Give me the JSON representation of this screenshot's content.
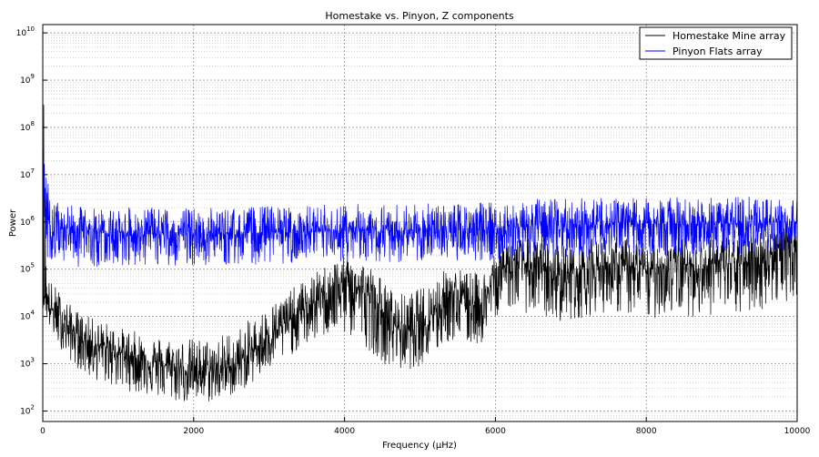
{
  "chart_data": {
    "type": "line",
    "title": "Homestake vs. Pinyon, Z components",
    "xlabel": "Frequency (μHz)",
    "ylabel": "Power",
    "xlim": [
      0,
      10000
    ],
    "ylim": [
      60,
      15000000000
    ],
    "yscale": "log",
    "grid": true,
    "legend_position": "top-right",
    "x_ticks": [
      "0",
      "2000",
      "4000",
      "6000",
      "8000",
      "10000"
    ],
    "y_ticks": [
      {
        "base": "10",
        "exp": "2"
      },
      {
        "base": "10",
        "exp": "3"
      },
      {
        "base": "10",
        "exp": "4"
      },
      {
        "base": "10",
        "exp": "5"
      },
      {
        "base": "10",
        "exp": "6"
      },
      {
        "base": "10",
        "exp": "7"
      },
      {
        "base": "10",
        "exp": "8"
      },
      {
        "base": "10",
        "exp": "9"
      },
      {
        "base": "10",
        "exp": "10"
      }
    ],
    "series": [
      {
        "name": "Homestake Mine array",
        "color": "#000000",
        "x": [
          0,
          20,
          60,
          100,
          200,
          400,
          600,
          800,
          1000,
          1200,
          1500,
          1800,
          2000,
          2200,
          2400,
          2600,
          2800,
          3000,
          3200,
          3400,
          3600,
          3800,
          4000,
          4200,
          4400,
          4600,
          4800,
          5000,
          5200,
          5400,
          5600,
          5800,
          5900,
          6000,
          6200,
          6400,
          6600,
          6800,
          7000,
          7200,
          7400,
          7600,
          7800,
          8000,
          8200,
          8400,
          8600,
          8800,
          9000,
          9200,
          9400,
          9600,
          9800,
          10000
        ],
        "y": [
          30000,
          30000,
          20000,
          15000,
          10000,
          5000,
          3000,
          2200,
          1800,
          1400,
          1000,
          800,
          700,
          700,
          800,
          1000,
          2000,
          4000,
          7000,
          12000,
          20000,
          35000,
          50000,
          40000,
          20000,
          8000,
          5000,
          7000,
          15000,
          30000,
          20000,
          18000,
          30000,
          80000,
          150000,
          130000,
          100000,
          70000,
          90000,
          100000,
          120000,
          120000,
          110000,
          90000,
          120000,
          140000,
          120000,
          120000,
          150000,
          120000,
          160000,
          200000,
          300000,
          400000
        ],
        "y_min": [
          15000,
          15000,
          8000,
          5000,
          2500,
          1000,
          500,
          400,
          300,
          250,
          200,
          150,
          150,
          150,
          180,
          250,
          400,
          700,
          1200,
          2000,
          3000,
          4000,
          4000,
          3000,
          1500,
          800,
          700,
          900,
          1500,
          3000,
          2500,
          2500,
          4000,
          10000,
          15000,
          12000,
          10000,
          8000,
          8000,
          10000,
          12000,
          12000,
          10000,
          8000,
          10000,
          12000,
          10000,
          10000,
          12000,
          10000,
          12000,
          15000,
          20000,
          25000
        ],
        "y_max": [
          3000000000,
          3000000000,
          80000,
          60000,
          40000,
          15000,
          10000,
          8000,
          6000,
          5000,
          4000,
          3500,
          3500,
          3500,
          4500,
          6000,
          10000,
          18000,
          30000,
          50000,
          80000,
          150000,
          200000,
          180000,
          100000,
          40000,
          30000,
          40000,
          70000,
          120000,
          100000,
          80000,
          120000,
          300000,
          500000,
          450000,
          400000,
          350000,
          400000,
          450000,
          450000,
          500000,
          450000,
          400000,
          500000,
          500000,
          500000,
          500000,
          600000,
          500000,
          600000,
          700000,
          800000,
          900000
        ]
      },
      {
        "name": "Pinyon Flats array",
        "color": "#0000ff",
        "x": [
          0,
          20,
          60,
          100,
          200,
          400,
          600,
          800,
          1000,
          1500,
          2000,
          2500,
          3000,
          3500,
          4000,
          4500,
          5000,
          5500,
          6000,
          6500,
          7000,
          7500,
          8000,
          8500,
          9000,
          9500,
          10000
        ],
        "y": [
          3000000,
          3000000,
          1500000,
          900000,
          800000,
          700000,
          650000,
          600000,
          600000,
          550000,
          550000,
          550000,
          600000,
          600000,
          650000,
          650000,
          650000,
          700000,
          750000,
          800000,
          850000,
          850000,
          900000,
          900000,
          900000,
          950000,
          1000000
        ],
        "y_min": [
          100000,
          100000,
          150000,
          150000,
          150000,
          120000,
          100000,
          120000,
          120000,
          120000,
          120000,
          120000,
          130000,
          130000,
          140000,
          140000,
          140000,
          150000,
          150000,
          170000,
          180000,
          180000,
          190000,
          190000,
          190000,
          200000,
          200000
        ],
        "y_max": [
          3000000000,
          3000000000,
          10000000,
          3000000,
          2500000,
          2200000,
          2000000,
          2000000,
          2000000,
          2000000,
          2000000,
          2000000,
          2200000,
          2200000,
          2500000,
          2500000,
          2400000,
          2500000,
          2800000,
          3000000,
          3200000,
          3200000,
          3300000,
          3300000,
          3400000,
          3500000,
          3600000
        ]
      }
    ]
  }
}
